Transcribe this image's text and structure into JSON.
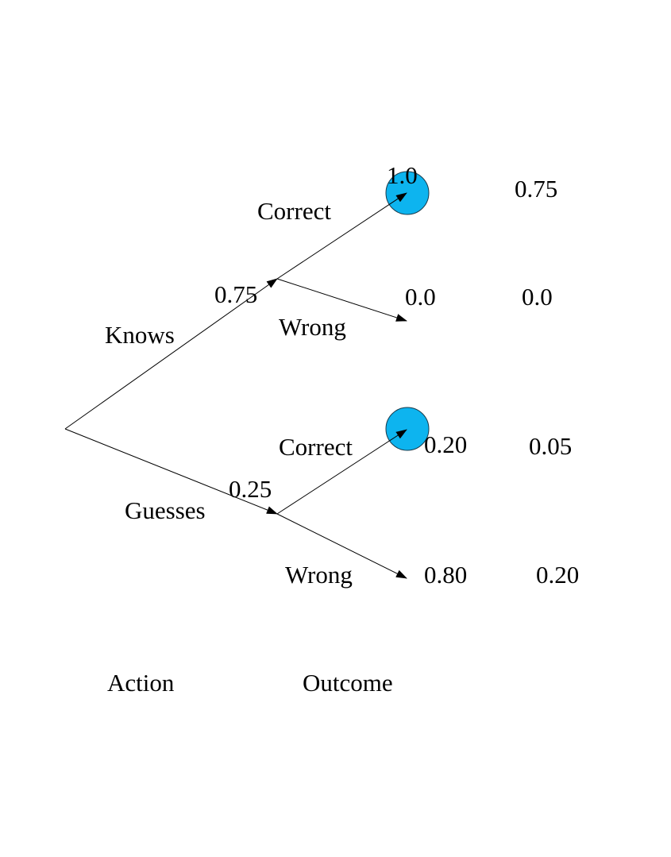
{
  "colors": {
    "line": "#000000",
    "highlight": "#0db4ef"
  },
  "root": {
    "branches": [
      {
        "label": "Knows",
        "probability": "0.75",
        "outcomes": [
          {
            "label": "Correct",
            "probability": "1.0",
            "joint": "0.75",
            "highlighted": true
          },
          {
            "label": "Wrong",
            "probability": "0.0",
            "joint": "0.0",
            "highlighted": false
          }
        ]
      },
      {
        "label": "Guesses",
        "probability": "0.25",
        "outcomes": [
          {
            "label": "Correct",
            "probability": "0.20",
            "joint": "0.05",
            "highlighted": true
          },
          {
            "label": "Wrong",
            "probability": "0.80",
            "joint": "0.20",
            "highlighted": false
          }
        ]
      }
    ]
  },
  "footer": {
    "action_label": "Action",
    "outcome_label": "Outcome"
  }
}
